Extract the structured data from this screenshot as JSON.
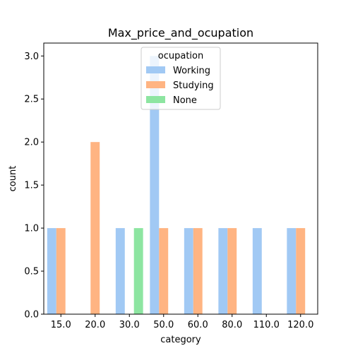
{
  "chart_data": {
    "type": "bar",
    "title": "Max_price_and_ocupation",
    "xlabel": "category",
    "ylabel": "count",
    "categories": [
      "15.0",
      "20.0",
      "30.0",
      "50.0",
      "60.0",
      "80.0",
      "110.0",
      "120.0"
    ],
    "series": [
      {
        "name": "Working",
        "color": "#a1c9f4",
        "values": [
          1,
          0,
          1,
          3,
          1,
          1,
          1,
          1
        ]
      },
      {
        "name": "Studying",
        "color": "#ffb482",
        "values": [
          1,
          2,
          0,
          1,
          1,
          1,
          0,
          1
        ]
      },
      {
        "name": "None",
        "color": "#8de5a1",
        "values": [
          0,
          0,
          1,
          0,
          0,
          0,
          0,
          0
        ]
      }
    ],
    "ylim": [
      0,
      3.15
    ],
    "yticks": [
      "0.0",
      "0.5",
      "1.0",
      "1.5",
      "2.0",
      "2.5",
      "3.0"
    ],
    "legend": {
      "title": "ocupation",
      "placement": "upper-center"
    },
    "grid": false
  }
}
